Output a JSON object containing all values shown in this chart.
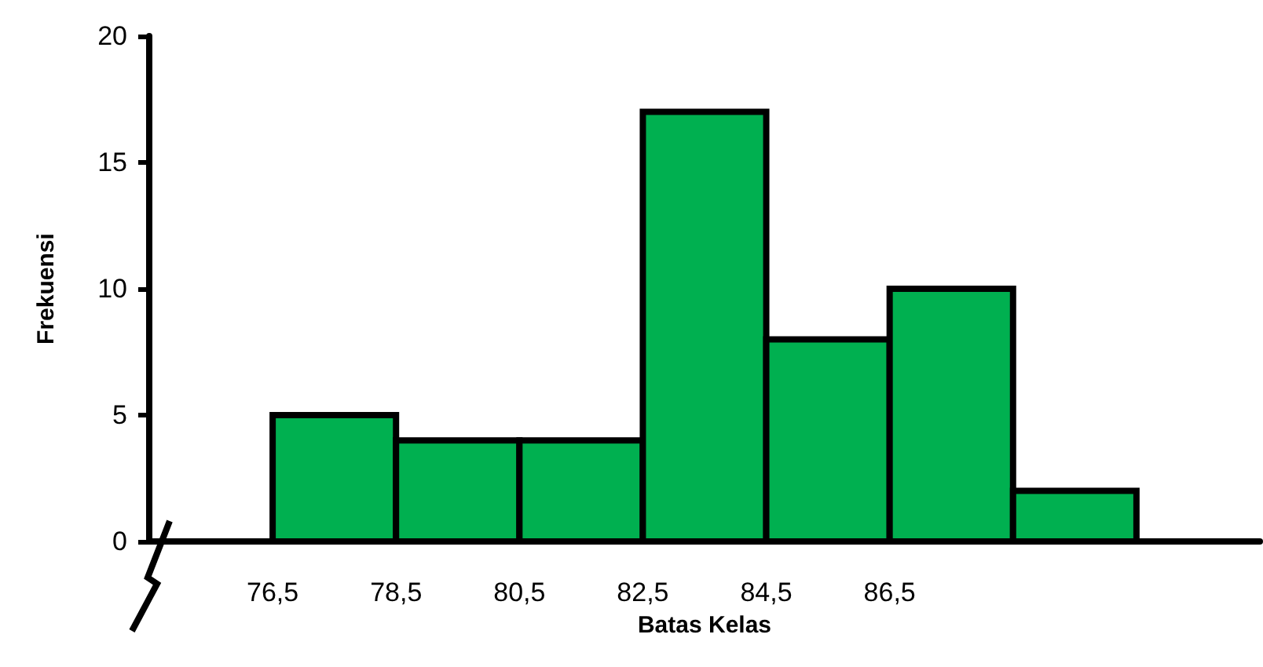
{
  "chart_data": {
    "type": "histogram",
    "xlabel": "Batas Kelas",
    "ylabel": "Frekuensi",
    "bins": [
      76.5,
      78.5,
      80.5,
      82.5,
      84.5,
      86.5,
      88.5,
      90.5
    ],
    "values": [
      5,
      4,
      4,
      17,
      8,
      10,
      2
    ],
    "color": "#00b050",
    "xlim": [
      74.5,
      92.5
    ],
    "xticks": [
      {
        "value": 76.5,
        "label": "76,5"
      },
      {
        "value": 78.5,
        "label": "78,5"
      },
      {
        "value": 80.5,
        "label": "80,5"
      },
      {
        "value": 82.5,
        "label": "82,5"
      },
      {
        "value": 84.5,
        "label": "84,5"
      },
      {
        "value": 86.5,
        "label": "86,5"
      }
    ],
    "ylim": [
      0,
      20
    ],
    "yticks": [
      0,
      5,
      10,
      15,
      20
    ],
    "grid": false
  }
}
